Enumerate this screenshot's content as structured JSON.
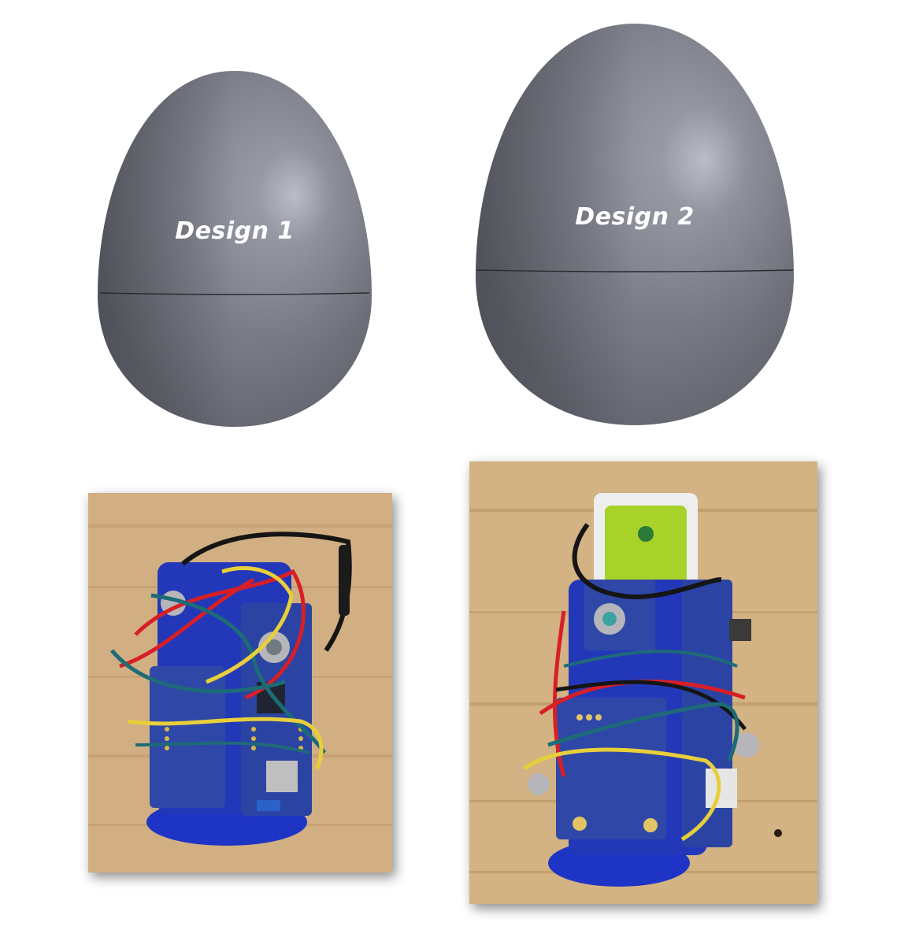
{
  "designs": [
    {
      "label": "Design 1"
    },
    {
      "label": "Design 2"
    }
  ],
  "colors": {
    "egg_shell": "#7b7d87",
    "egg_highlight": "#b9bcc6",
    "seam": "#2a2b30",
    "wood": "#cda97a",
    "wood_dark": "#b48a5a",
    "pcb_blue": "#2a3f9a",
    "printed_blue": "#1d32c8",
    "wire_red": "#d81f26",
    "wire_yellow": "#e8cf3a",
    "wire_teal": "#1e6b78",
    "wire_black": "#151515",
    "battery_green": "#a7d22a"
  },
  "photo_descriptions": [
    {
      "icon": "electronics-assembly-design-1"
    },
    {
      "icon": "electronics-assembly-design-2"
    }
  ]
}
